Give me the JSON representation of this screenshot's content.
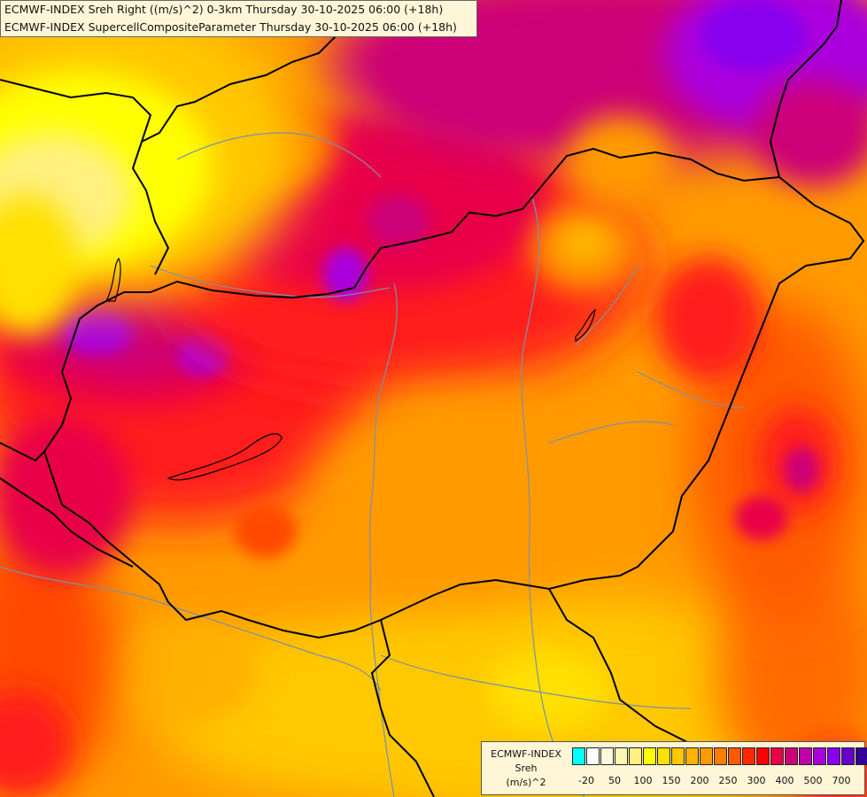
{
  "title": {
    "line1": "ECMWF-INDEX Sreh Right ((m/s)^2) 0-3km Thursday 30-10-2025 06:00 (+18h)",
    "line2": "ECMWF-INDEX SupercellCompositeParameter Thursday 30-10-2025 06:00 (+18h)"
  },
  "legend": {
    "line1": "ECMWF-INDEX",
    "line2": "Sreh",
    "line3": "(m/s)^2",
    "colors": [
      "#00ffff",
      "#ffffff",
      "#fff8dc",
      "#fff5b0",
      "#fff080",
      "#ffff00",
      "#ffe000",
      "#ffc800",
      "#ffb000",
      "#ff9a00",
      "#ff7a00",
      "#ff5a00",
      "#ff2800",
      "#ff0000",
      "#e8004a",
      "#cc0077",
      "#c000aa",
      "#aa00dd",
      "#8800ee",
      "#6600cc",
      "#330099",
      "#000080"
    ],
    "ticks": [
      "-20",
      "50",
      "100",
      "150",
      "200",
      "250",
      "300",
      "400",
      "500",
      "700"
    ]
  },
  "colors": {
    "yellow": "#ffff00",
    "gold": "#ffc800",
    "orange": "#ff9a00",
    "dark_orange": "#ff6a00",
    "red": "#ff1a1a",
    "crimson": "#e8004a",
    "magenta": "#cc0077",
    "violet": "#aa00dd",
    "purple": "#8800ee"
  }
}
